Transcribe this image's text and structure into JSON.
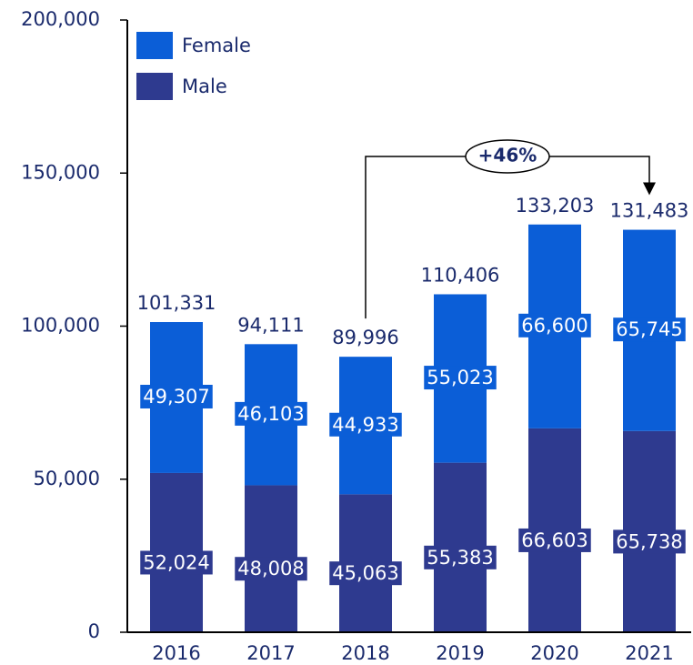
{
  "chart_data": {
    "type": "stacked_bar",
    "categories": [
      "2016",
      "2017",
      "2018",
      "2019",
      "2020",
      "2021"
    ],
    "series": [
      {
        "name": "Male",
        "color": "#2e3a8f",
        "values": [
          52024,
          48008,
          45063,
          55383,
          66603,
          65738
        ],
        "value_labels": [
          "52,024",
          "48,008",
          "45,063",
          "55,383",
          "66,603",
          "65,738"
        ]
      },
      {
        "name": "Female",
        "color": "#0b5ed7",
        "values": [
          49307,
          46103,
          44933,
          55023,
          66600,
          65745
        ],
        "value_labels": [
          "49,307",
          "46,103",
          "44,933",
          "55,023",
          "66,600",
          "65,745"
        ]
      }
    ],
    "totals": [
      101331,
      94111,
      89996,
      110406,
      133203,
      131483
    ],
    "total_labels": [
      "101,331",
      "94,111",
      "89,996",
      "110,406",
      "133,203",
      "131,483"
    ],
    "annotation": "+46%",
    "ylim": [
      0,
      200000
    ],
    "yticks": [
      0,
      {
        "value": 50000,
        "label": "50,000"
      },
      {
        "value": 100000,
        "label": "100,000"
      },
      {
        "value": 150000,
        "label": "150,000"
      },
      {
        "value": 200000,
        "label": "200,000"
      }
    ],
    "legend": "top-left"
  }
}
